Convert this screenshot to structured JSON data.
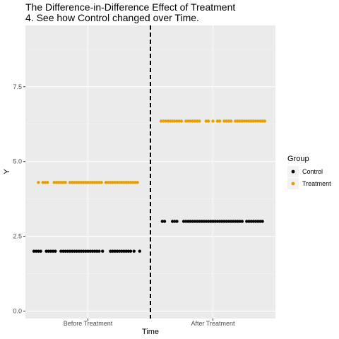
{
  "chart_data": {
    "type": "scatter",
    "title_lines": [
      "The Difference-in-Difference Effect of Treatment",
      "4. See how Control changed over Time."
    ],
    "xlabel": "Time",
    "ylabel": "Y",
    "categories": [
      "Before Treatment",
      "After Treatment"
    ],
    "ylim": [
      -0.25,
      9.55
    ],
    "yticks": [
      0.0,
      2.5,
      5.0,
      7.5
    ],
    "ytick_labels": [
      "0.0",
      "2.5",
      "5.0",
      "7.5"
    ],
    "grid": true,
    "vertical_line": {
      "x_between": [
        "Before Treatment",
        "After Treatment"
      ],
      "style": "dashed"
    },
    "legend": {
      "title": "Group",
      "position": "right",
      "entries": [
        {
          "label": "Control",
          "color": "#000000"
        },
        {
          "label": "Treatment",
          "color": "#E69F00"
        }
      ]
    },
    "series": [
      {
        "name": "Control",
        "color": "#000000",
        "points": [
          {
            "x": "Before Treatment",
            "y": 2.0,
            "jitter": [
              -0.48,
              -0.46,
              -0.44,
              -0.42,
              -0.37,
              -0.35,
              -0.33,
              -0.31,
              -0.29,
              -0.24,
              -0.22,
              -0.2,
              -0.18,
              -0.16,
              -0.14,
              -0.12,
              -0.1,
              -0.08,
              -0.06,
              -0.04,
              -0.02,
              0.0,
              0.02,
              0.04,
              0.06,
              0.08,
              0.1,
              0.13,
              0.2,
              0.22,
              0.24,
              0.26,
              0.28,
              0.3,
              0.32,
              0.34,
              0.36,
              0.38,
              0.41,
              0.46
            ]
          },
          {
            "x": "After Treatment",
            "y": 3.0,
            "jitter": [
              -0.45,
              -0.43,
              -0.36,
              -0.34,
              -0.32,
              -0.26,
              -0.24,
              -0.22,
              -0.2,
              -0.18,
              -0.16,
              -0.14,
              -0.12,
              -0.1,
              -0.08,
              -0.06,
              -0.04,
              -0.02,
              0.0,
              0.02,
              0.04,
              0.06,
              0.08,
              0.1,
              0.12,
              0.14,
              0.16,
              0.18,
              0.2,
              0.22,
              0.24,
              0.26,
              0.3,
              0.32,
              0.34,
              0.36,
              0.38,
              0.4,
              0.42,
              0.44
            ]
          }
        ]
      },
      {
        "name": "Treatment",
        "color": "#E69F00",
        "points": [
          {
            "x": "Before Treatment",
            "y": 4.3,
            "jitter": [
              -0.44,
              -0.4,
              -0.38,
              -0.36,
              -0.3,
              -0.28,
              -0.26,
              -0.24,
              -0.22,
              -0.2,
              -0.16,
              -0.14,
              -0.12,
              -0.1,
              -0.08,
              -0.06,
              -0.04,
              -0.02,
              0.0,
              0.02,
              0.04,
              0.06,
              0.08,
              0.1,
              0.12,
              0.16,
              0.18,
              0.2,
              0.22,
              0.24,
              0.26,
              0.28,
              0.3,
              0.32,
              0.34,
              0.36,
              0.38,
              0.4,
              0.42,
              0.44
            ]
          },
          {
            "x": "After Treatment",
            "y": 6.35,
            "jitter": [
              -0.46,
              -0.44,
              -0.42,
              -0.4,
              -0.38,
              -0.36,
              -0.34,
              -0.32,
              -0.3,
              -0.28,
              -0.24,
              -0.22,
              -0.2,
              -0.18,
              -0.16,
              -0.14,
              -0.12,
              -0.06,
              -0.04,
              0.0,
              0.04,
              0.06,
              0.1,
              0.12,
              0.14,
              0.16,
              0.2,
              0.22,
              0.24,
              0.26,
              0.28,
              0.3,
              0.32,
              0.34,
              0.36,
              0.38,
              0.4,
              0.42,
              0.44,
              0.46
            ]
          }
        ]
      }
    ]
  }
}
